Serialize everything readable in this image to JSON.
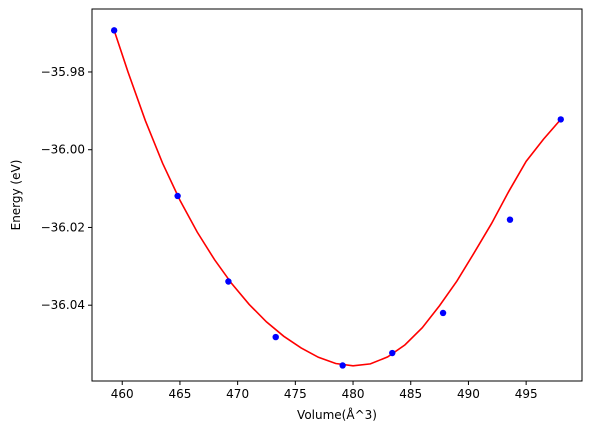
{
  "chart_data": {
    "type": "scatter",
    "title": "",
    "xlabel": "Volume(Å^3)",
    "ylabel": "Energy (eV)",
    "xlim": [
      457.38,
      499.84
    ],
    "ylim": [
      -36.0595,
      -35.9638
    ],
    "xticks": [
      460,
      465,
      470,
      475,
      480,
      485,
      490,
      495
    ],
    "xtick_labels": [
      "460",
      "465",
      "470",
      "475",
      "480",
      "485",
      "490",
      "495"
    ],
    "yticks": [
      -35.98,
      -36.0,
      -36.02,
      -36.04
    ],
    "ytick_labels": [
      "−35.98",
      "−36.00",
      "−36.02",
      "−36.04"
    ],
    "grid": false,
    "series": [
      {
        "kind": "points",
        "color": "#0000ff",
        "x": [
          459.3,
          464.8,
          469.2,
          473.3,
          479.1,
          483.4,
          487.8,
          493.6,
          498.0
        ],
        "y": [
          -35.9693,
          -36.0119,
          -36.0339,
          -36.0482,
          -36.0555,
          -36.0523,
          -36.042,
          -36.018,
          -35.9922
        ]
      },
      {
        "kind": "fit",
        "color": "#ff0000",
        "x": [
          459.3,
          460.5,
          462.0,
          463.5,
          465.0,
          466.5,
          468.0,
          469.5,
          471.0,
          472.5,
          474.0,
          475.5,
          477.0,
          478.5,
          480.0,
          481.5,
          483.0,
          484.5,
          486.0,
          487.5,
          489.0,
          490.5,
          492.0,
          493.5,
          495.0,
          496.5,
          498.0
        ],
        "y": [
          -35.9693,
          -35.98,
          -35.9925,
          -36.0035,
          -36.013,
          -36.0212,
          -36.0283,
          -36.0345,
          -36.0398,
          -36.0443,
          -36.048,
          -36.051,
          -36.0534,
          -36.055,
          -36.0556,
          -36.0551,
          -36.0533,
          -36.0502,
          -36.0458,
          -36.0401,
          -36.0338,
          -36.0265,
          -36.019,
          -36.0107,
          -36.003,
          -35.9973,
          -35.9922
        ]
      }
    ]
  }
}
